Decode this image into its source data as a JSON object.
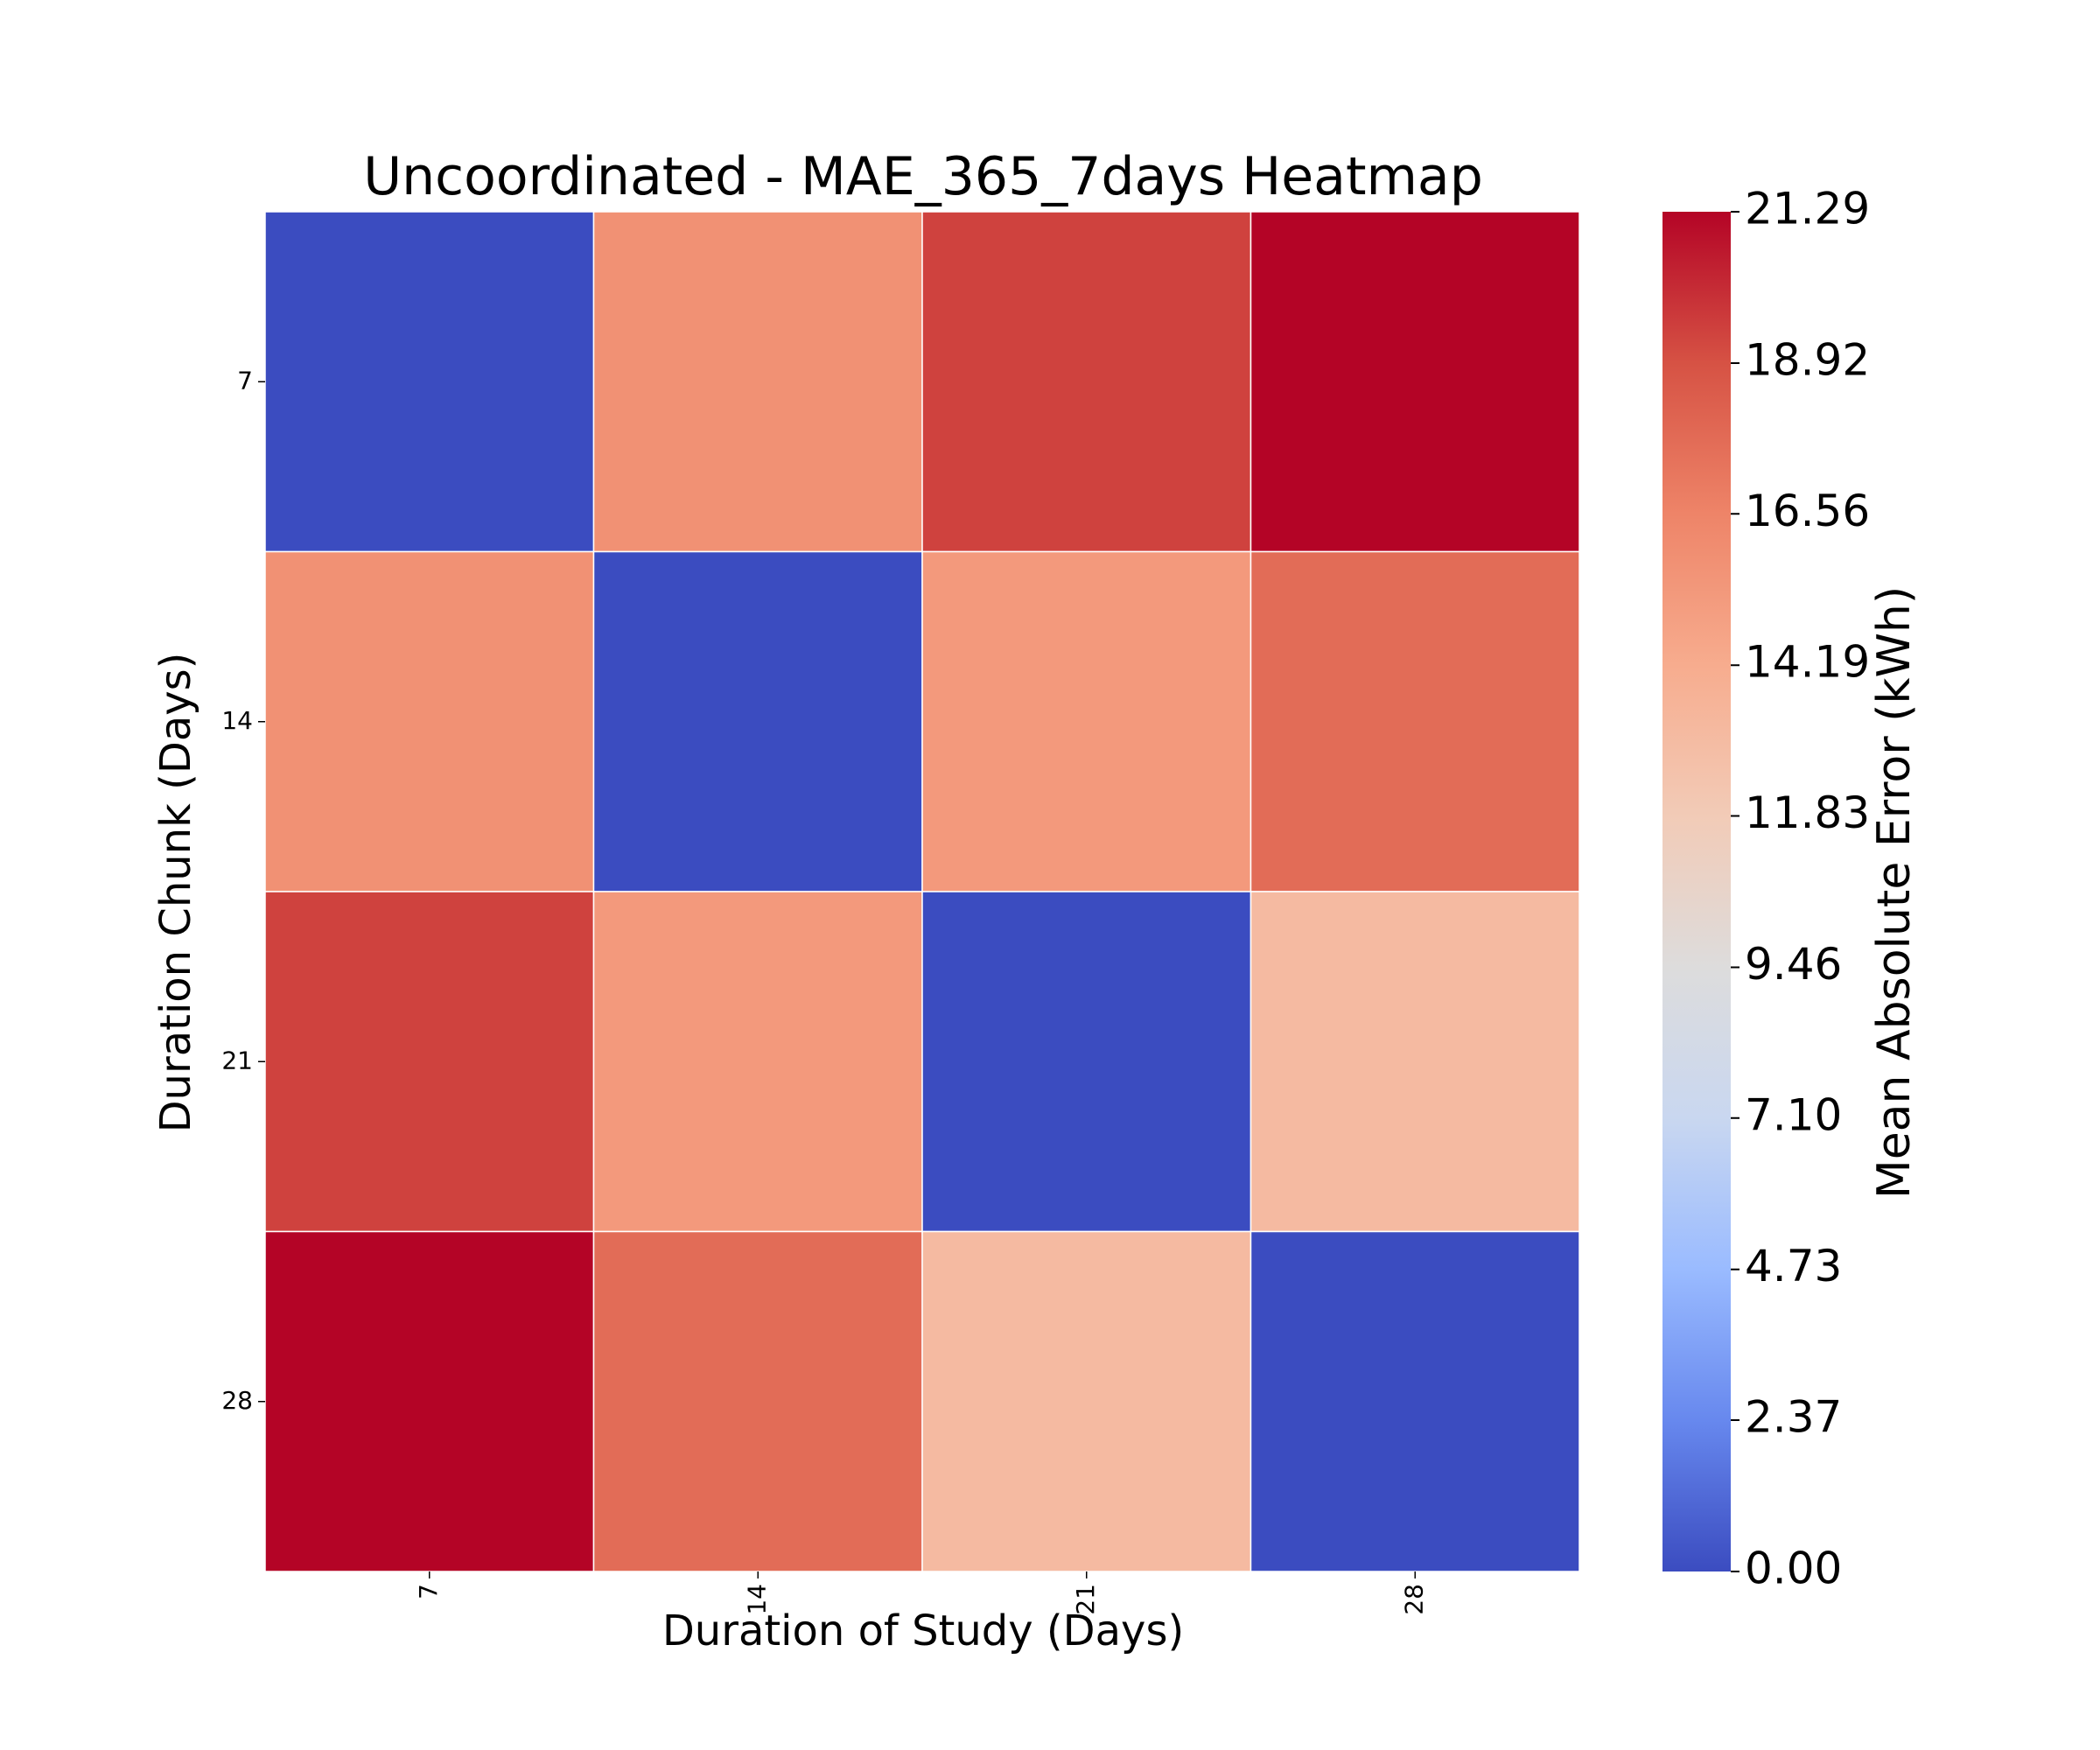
{
  "chart_data": {
    "type": "heatmap",
    "title": "Uncoordinated - MAE_365_7days Heatmap",
    "xlabel": "Duration of Study (Days)",
    "ylabel": "Duration Chunk (Days)",
    "x_categories": [
      "7",
      "14",
      "21",
      "28"
    ],
    "y_categories": [
      "7",
      "14",
      "21",
      "28"
    ],
    "values": [
      [
        0.0,
        15.8,
        19.4,
        21.29
      ],
      [
        15.8,
        0.0,
        15.3,
        17.7
      ],
      [
        19.4,
        15.3,
        0.0,
        13.1
      ],
      [
        21.29,
        17.7,
        13.1,
        0.0
      ]
    ],
    "colorbar": {
      "label": "Mean Absolute Error (kWh)",
      "min": 0.0,
      "max": 21.29,
      "ticks": [
        "0.00",
        "2.37",
        "4.73",
        "7.10",
        "9.46",
        "11.83",
        "14.19",
        "16.56",
        "18.92",
        "21.29"
      ],
      "colormap": "coolwarm",
      "colors": [
        "#3b4cc0",
        "#6788ee",
        "#9abbff",
        "#c9d7f0",
        "#dddcdc",
        "#f2cbb7",
        "#f7ac8e",
        "#ee8468",
        "#d65244",
        "#b40426"
      ]
    },
    "grid": false,
    "cell_border_color": "#ffffff"
  }
}
